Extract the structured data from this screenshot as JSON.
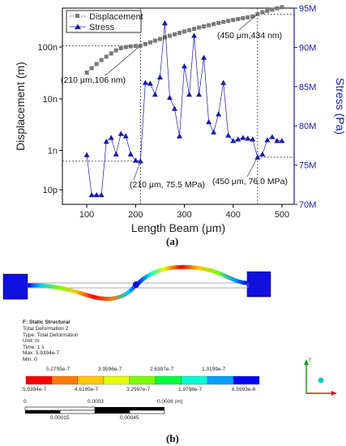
{
  "panel_a_label": "(a)",
  "panel_b_label": "(b)",
  "chart_data": {
    "type": "line",
    "xlabel": "Length Beam (μm)",
    "ylabel_left": "Displacement (m)",
    "ylabel_right": "Stress (Pa)",
    "xlim": [
      50,
      525
    ],
    "x_ticks": [
      100,
      200,
      300,
      400,
      500
    ],
    "y_left_scale": "log",
    "y_left_ticks": [
      "10p",
      "1n",
      "10n",
      "100n"
    ],
    "y_right_ticks": [
      "70M",
      "75M",
      "80M",
      "85M",
      "90M",
      "95M"
    ],
    "y_right_lim": [
      70,
      95
    ],
    "legend": "top-left",
    "series": [
      {
        "name": "Displacement",
        "axis": "left",
        "color": "#7a7a7a",
        "marker": "square",
        "x": [
          100,
          110,
          120,
          130,
          140,
          150,
          160,
          170,
          180,
          190,
          200,
          210,
          220,
          230,
          240,
          250,
          260,
          270,
          280,
          290,
          300,
          310,
          320,
          330,
          340,
          350,
          360,
          370,
          380,
          390,
          400,
          410,
          420,
          430,
          440,
          450,
          460,
          470,
          480,
          490,
          500
        ],
        "values": [
          3.2e-08,
          3.9e-08,
          4.7e-08,
          5.6e-08,
          6.5e-08,
          7.5e-08,
          8.6e-08,
          9.5e-08,
          1e-07,
          1.03e-07,
          1.05e-07,
          1.06e-07,
          1.14e-07,
          1.23e-07,
          1.33e-07,
          1.43e-07,
          1.54e-07,
          1.65e-07,
          1.76e-07,
          1.88e-07,
          2e-07,
          2.12e-07,
          2.25e-07,
          2.38e-07,
          2.51e-07,
          2.64e-07,
          2.78e-07,
          2.92e-07,
          3.06e-07,
          3.2e-07,
          3.34e-07,
          3.48e-07,
          3.62e-07,
          3.76e-07,
          3.92e-07,
          4.34e-07,
          4.7e-07,
          5e-07,
          5.3e-07,
          5.6e-07,
          5.9e-07
        ]
      },
      {
        "name": "Stress",
        "axis": "right",
        "color": "#1a1aa8",
        "marker": "triangle",
        "x": [
          100,
          110,
          120,
          130,
          140,
          150,
          160,
          170,
          180,
          190,
          200,
          210,
          220,
          230,
          240,
          250,
          260,
          270,
          280,
          290,
          300,
          310,
          320,
          330,
          340,
          350,
          360,
          370,
          380,
          390,
          400,
          410,
          420,
          430,
          440,
          450,
          460,
          470,
          480,
          490,
          500
        ],
        "values": [
          76.3,
          71.2,
          71.2,
          71.2,
          78.0,
          78.5,
          76.4,
          79.0,
          78.7,
          76.4,
          75.6,
          75.5,
          85.5,
          85.4,
          84.0,
          86.2,
          93.1,
          83.6,
          82.2,
          78.7,
          87.6,
          84.0,
          91.5,
          84.0,
          88.7,
          80.5,
          79.2,
          81.5,
          85.5,
          78.8,
          78.1,
          78.3,
          78.5,
          78.4,
          78.3,
          76.0,
          76.4,
          78.2,
          78.6,
          78.1,
          78.1
        ]
      }
    ],
    "annotations": [
      {
        "text": "(450 μm,434 nm)",
        "x": 450,
        "axis": "left",
        "y": 4.34e-07
      },
      {
        "text": "(210 μm,106 nm)",
        "x": 210,
        "axis": "left",
        "y": 1.06e-07
      },
      {
        "text": "(210 μm, 75.5 MPa)",
        "x": 210,
        "axis": "right",
        "y": 75.5
      },
      {
        "text": "(450 μm, 76.0 MPa)",
        "x": 450,
        "axis": "right",
        "y": 76.0
      }
    ]
  },
  "fea": {
    "title": "F: Static Structural",
    "lines": [
      "Total Deformation 2",
      "Type: Total Deformation",
      "Unit: m",
      "Time: 1 s",
      "Max: 5.9394e-7",
      "Min: 0"
    ],
    "colorbar_colors": [
      "#ff0000",
      "#ff7a00",
      "#ffc800",
      "#e6ff00",
      "#7cff00",
      "#00ff3c",
      "#00ffd2",
      "#00a0ff",
      "#0000ff"
    ],
    "colorbar_top_labels": [
      "5.2795e-7",
      "3.9596e-7",
      "2.6397e-7",
      "1.3199e-7"
    ],
    "colorbar_bottom_labels": [
      "5.9394e-7",
      "4.6195e-7",
      "3.2997e-7",
      "1.9798e-7",
      "6.5993e-8"
    ],
    "scale_top_labels": [
      "0",
      "0.0003",
      "0.0006 (m)"
    ],
    "scale_bottom_labels": [
      "0.00015",
      "0.00045"
    ],
    "axis_label": "Y"
  }
}
